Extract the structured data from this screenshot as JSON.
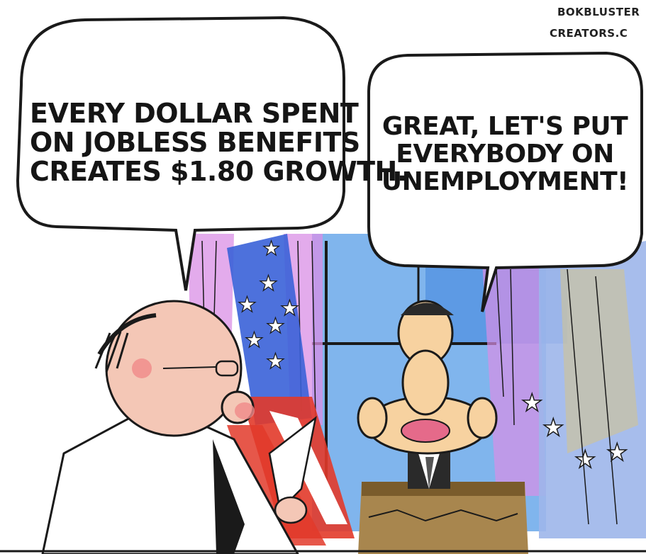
{
  "credits": {
    "line1": "BOKBLUSTER",
    "line2": "CREATORS.C"
  },
  "left_bubble": {
    "speaker": "man with glasses",
    "lines": [
      "EVERY DOLLAR SPENT",
      "ON JOBLESS BENEFITS",
      "CREATES $1.80 GROWTH."
    ]
  },
  "right_bubble": {
    "speaker": "man at podium",
    "lines": [
      "GREAT, LET'S PUT",
      "EVERYBODY ON",
      "UNEMPLOYMENT!"
    ]
  },
  "colors": {
    "flag_blue": "#3a62d8",
    "flag_red": "#e23a2a",
    "curtain_purple": "#d98fe6",
    "window_blue": "#6aa8ea",
    "skin": "#f4c7b6",
    "podium": "#a8864e"
  }
}
